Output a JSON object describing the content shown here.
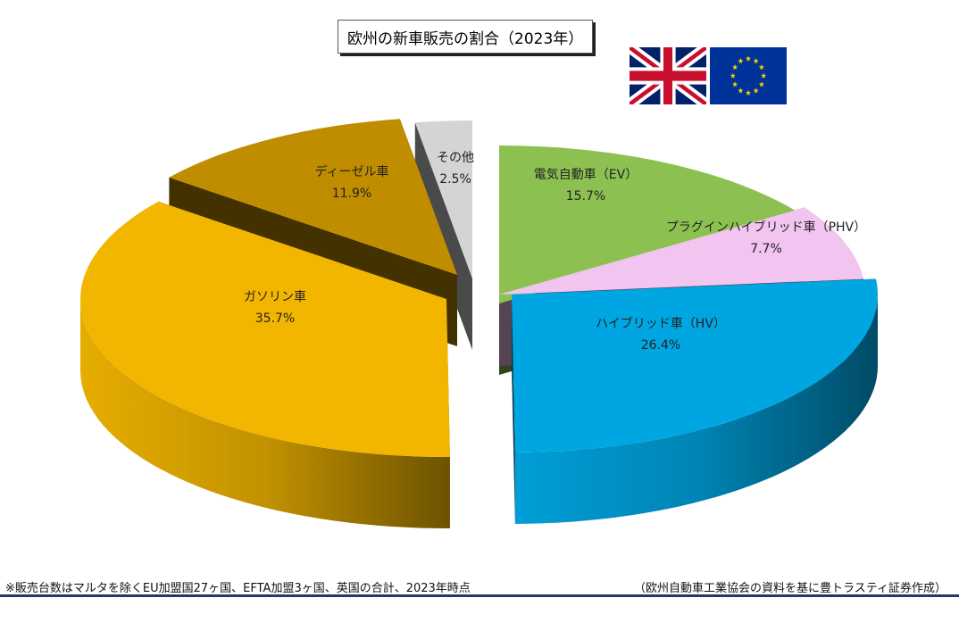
{
  "chart_data": {
    "type": "pie",
    "title": "欧州の新車販売の割合（2023年）",
    "unit": "%",
    "slices": [
      {
        "name": "電気自動車（EV）",
        "value": 15.7,
        "label": "15.7%",
        "color": "#8cc152"
      },
      {
        "name": "プラグインハイブリッド車（PHV）",
        "value": 7.7,
        "label": "7.7%",
        "color": "#f2c4f0"
      },
      {
        "name": "ハイブリッド車（HV）",
        "value": 26.4,
        "label": "26.4%",
        "color": "#00a6e2"
      },
      {
        "name": "ガソリン車",
        "value": 35.7,
        "label": "35.7%",
        "color": "#f2b600"
      },
      {
        "name": "ディーゼル車",
        "value": 11.9,
        "label": "11.9%",
        "color": "#c08d00"
      },
      {
        "name": "その他",
        "value": 2.5,
        "label": "2.5%",
        "color": "#d4d4d4"
      }
    ]
  },
  "flags": [
    "uk-flag-icon",
    "eu-flag-icon"
  ],
  "footer": {
    "note": "※販売台数はマルタを除くEU加盟国27ヶ国、EFTA加盟3ヶ国、英国の合計、2023年時点",
    "source": "（欧州自動車工業協会の資料を基に豊トラスティ証券作成）"
  }
}
